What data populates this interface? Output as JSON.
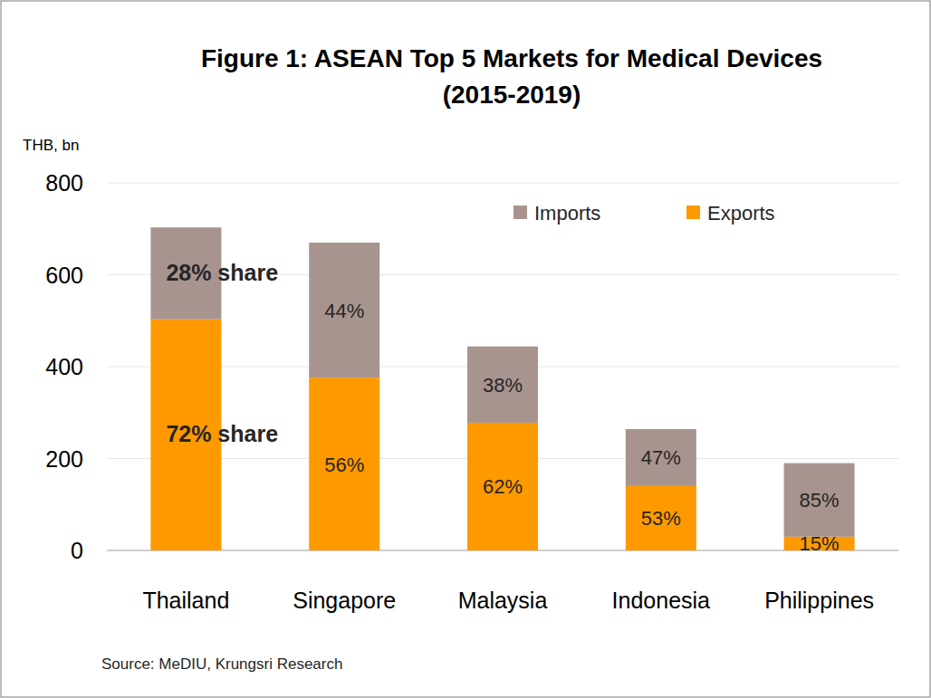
{
  "chart_data": {
    "type": "bar",
    "title": "Figure 1:  ASEAN Top 5 Markets for Medical Devices",
    "subtitle": "(2015-2019)",
    "y_label": "THB, bn",
    "source": "Source: MeDIU, Krungsri Research",
    "categories": [
      "Thailand",
      "Singapore",
      "Malaysia",
      "Indonesia",
      "Philippines"
    ],
    "series": [
      {
        "name": "Exports",
        "color": "#ff9900",
        "values": [
          503,
          376,
          278,
          140,
          30
        ],
        "share_labels": [
          "72% share",
          "56%",
          "62%",
          "53%",
          "15%"
        ]
      },
      {
        "name": "Imports",
        "color": "#a8948f",
        "values": [
          200,
          294,
          166,
          124,
          160
        ],
        "share_labels": [
          "28% share",
          "44%",
          "38%",
          "47%",
          "85%"
        ]
      }
    ],
    "ylim": [
      0,
      800
    ],
    "yticks": [
      0,
      200,
      400,
      600,
      800
    ],
    "grid": true,
    "stacked": true,
    "legend": "top-right"
  }
}
